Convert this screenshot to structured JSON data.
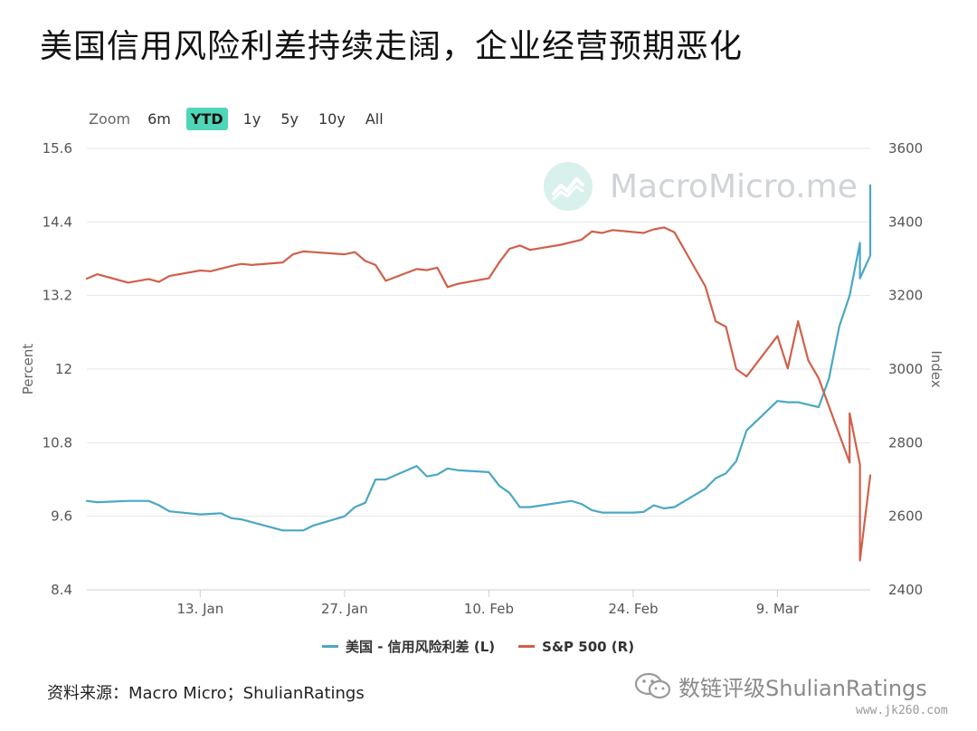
{
  "title": "美国信用风险利差持续走阔，企业经营预期恶化",
  "zoom": {
    "label": "Zoom",
    "options": [
      "6m",
      "YTD",
      "1y",
      "5y",
      "10y",
      "All"
    ],
    "active": "YTD"
  },
  "watermark": {
    "text": "MacroMicro.me",
    "icon": "macromicro-logo-icon"
  },
  "source": "资料来源：Macro Micro；ShulianRatings",
  "footer": {
    "brand": "数链评级ShulianRatings",
    "brand_icon": "wechat-icon",
    "url": "www.jk260.com"
  },
  "colors": {
    "spread": "#4aa8c4",
    "sp500": "#d0604a",
    "active_zoom": "#4fd6b8"
  },
  "chart_data": {
    "type": "line",
    "xlabel": "",
    "ylabel_left": "Percent",
    "ylabel_right": "Index",
    "ylim_left": [
      8.4,
      15.6
    ],
    "ylim_right": [
      2400,
      3600
    ],
    "yticks_left": [
      "8.4",
      "9.6",
      "10.8",
      "12",
      "13.2",
      "14.4",
      "15.6"
    ],
    "yticks_right": [
      "2400",
      "2600",
      "2800",
      "3000",
      "3200",
      "3400",
      "3600"
    ],
    "xlim": [
      "2020-01-02",
      "2020-03-18"
    ],
    "xticks": [
      {
        "date": "2020-01-13",
        "label": "13. Jan"
      },
      {
        "date": "2020-01-27",
        "label": "27. Jan"
      },
      {
        "date": "2020-02-10",
        "label": "10. Feb"
      },
      {
        "date": "2020-02-24",
        "label": "24. Feb"
      },
      {
        "date": "2020-03-09",
        "label": "9. Mar"
      }
    ],
    "grid": true,
    "legend_position": "bottom-center",
    "series": [
      {
        "name": "美国 - 信用风险利差 (L)",
        "axis": "left",
        "points": [
          [
            "2020-01-02",
            9.85
          ],
          [
            "2020-01-03",
            9.83
          ],
          [
            "2020-01-06",
            9.85
          ],
          [
            "2020-01-07",
            9.85
          ],
          [
            "2020-01-08",
            9.85
          ],
          [
            "2020-01-09",
            9.78
          ],
          [
            "2020-01-10",
            9.68
          ],
          [
            "2020-01-13",
            9.63
          ],
          [
            "2020-01-14",
            9.64
          ],
          [
            "2020-01-15",
            9.65
          ],
          [
            "2020-01-16",
            9.57
          ],
          [
            "2020-01-17",
            9.55
          ],
          [
            "2020-01-21",
            9.37
          ],
          [
            "2020-01-22",
            9.37
          ],
          [
            "2020-01-23",
            9.37
          ],
          [
            "2020-01-24",
            9.45
          ],
          [
            "2020-01-27",
            9.6
          ],
          [
            "2020-01-28",
            9.75
          ],
          [
            "2020-01-29",
            9.82
          ],
          [
            "2020-01-30",
            10.2
          ],
          [
            "2020-01-31",
            10.2
          ],
          [
            "2020-02-03",
            10.42
          ],
          [
            "2020-02-04",
            10.25
          ],
          [
            "2020-02-05",
            10.28
          ],
          [
            "2020-02-06",
            10.38
          ],
          [
            "2020-02-07",
            10.35
          ],
          [
            "2020-02-10",
            10.32
          ],
          [
            "2020-02-11",
            10.1
          ],
          [
            "2020-02-12",
            9.98
          ],
          [
            "2020-02-13",
            9.75
          ],
          [
            "2020-02-14",
            9.75
          ],
          [
            "2020-02-18",
            9.85
          ],
          [
            "2020-02-19",
            9.8
          ],
          [
            "2020-02-20",
            9.7
          ],
          [
            "2020-02-21",
            9.66
          ],
          [
            "2020-02-24",
            9.66
          ],
          [
            "2020-02-25",
            9.67
          ],
          [
            "2020-02-26",
            9.78
          ],
          [
            "2020-02-27",
            9.73
          ],
          [
            "2020-02-28",
            9.75
          ],
          [
            "2020-03-02",
            10.05
          ],
          [
            "2020-03-03",
            10.22
          ],
          [
            "2020-03-04",
            10.3
          ],
          [
            "2020-03-05",
            10.5
          ],
          [
            "2020-03-06",
            11.0
          ],
          [
            "2020-03-09",
            11.48
          ],
          [
            "2020-03-10",
            11.46
          ],
          [
            "2020-03-11",
            11.46
          ],
          [
            "2020-03-12",
            11.42
          ],
          [
            "2020-03-13",
            11.38
          ],
          [
            "2020-03-14",
            11.85
          ],
          [
            "2020-03-15",
            12.7
          ],
          [
            "2020-03-16",
            13.2
          ],
          [
            "2020-03-17",
            14.06
          ],
          [
            "2020-03-17",
            13.48
          ],
          [
            "2020-03-18",
            13.85
          ],
          [
            "2020-03-18",
            15.0
          ]
        ]
      },
      {
        "name": "S&P 500 (R)",
        "axis": "right",
        "points": [
          [
            "2020-01-02",
            3246
          ],
          [
            "2020-01-03",
            3258
          ],
          [
            "2020-01-06",
            3235
          ],
          [
            "2020-01-08",
            3245
          ],
          [
            "2020-01-09",
            3237
          ],
          [
            "2020-01-10",
            3253
          ],
          [
            "2020-01-13",
            3268
          ],
          [
            "2020-01-14",
            3266
          ],
          [
            "2020-01-16",
            3280
          ],
          [
            "2020-01-17",
            3286
          ],
          [
            "2020-01-18",
            3283
          ],
          [
            "2020-01-21",
            3290
          ],
          [
            "2020-01-22",
            3312
          ],
          [
            "2020-01-23",
            3320
          ],
          [
            "2020-01-24",
            3318
          ],
          [
            "2020-01-27",
            3312
          ],
          [
            "2020-01-28",
            3318
          ],
          [
            "2020-01-29",
            3294
          ],
          [
            "2020-01-30",
            3283
          ],
          [
            "2020-01-31",
            3240
          ],
          [
            "2020-02-03",
            3272
          ],
          [
            "2020-02-04",
            3269
          ],
          [
            "2020-02-05",
            3276
          ],
          [
            "2020-02-06",
            3223
          ],
          [
            "2020-02-07",
            3232
          ],
          [
            "2020-02-10",
            3247
          ],
          [
            "2020-02-11",
            3290
          ],
          [
            "2020-02-12",
            3327
          ],
          [
            "2020-02-13",
            3336
          ],
          [
            "2020-02-14",
            3324
          ],
          [
            "2020-02-17",
            3338
          ],
          [
            "2020-02-18",
            3345
          ],
          [
            "2020-02-19",
            3352
          ],
          [
            "2020-02-20",
            3374
          ],
          [
            "2020-02-21",
            3370
          ],
          [
            "2020-02-22",
            3378
          ],
          [
            "2020-02-25",
            3370
          ],
          [
            "2020-02-26",
            3380
          ],
          [
            "2020-02-27",
            3385
          ],
          [
            "2020-02-28",
            3372
          ],
          [
            "2020-03-02",
            3225
          ],
          [
            "2020-03-03",
            3130
          ],
          [
            "2020-03-04",
            3115
          ],
          [
            "2020-03-05",
            3000
          ],
          [
            "2020-03-06",
            2980
          ],
          [
            "2020-03-09",
            3090
          ],
          [
            "2020-03-10",
            3002
          ],
          [
            "2020-03-11",
            3130
          ],
          [
            "2020-03-12",
            3023
          ],
          [
            "2020-03-13",
            2975
          ],
          [
            "2020-03-16",
            2746
          ],
          [
            "2020-03-16",
            2880
          ],
          [
            "2020-03-17",
            2740
          ],
          [
            "2020-03-17",
            2480
          ],
          [
            "2020-03-18",
            2711
          ]
        ]
      }
    ]
  }
}
